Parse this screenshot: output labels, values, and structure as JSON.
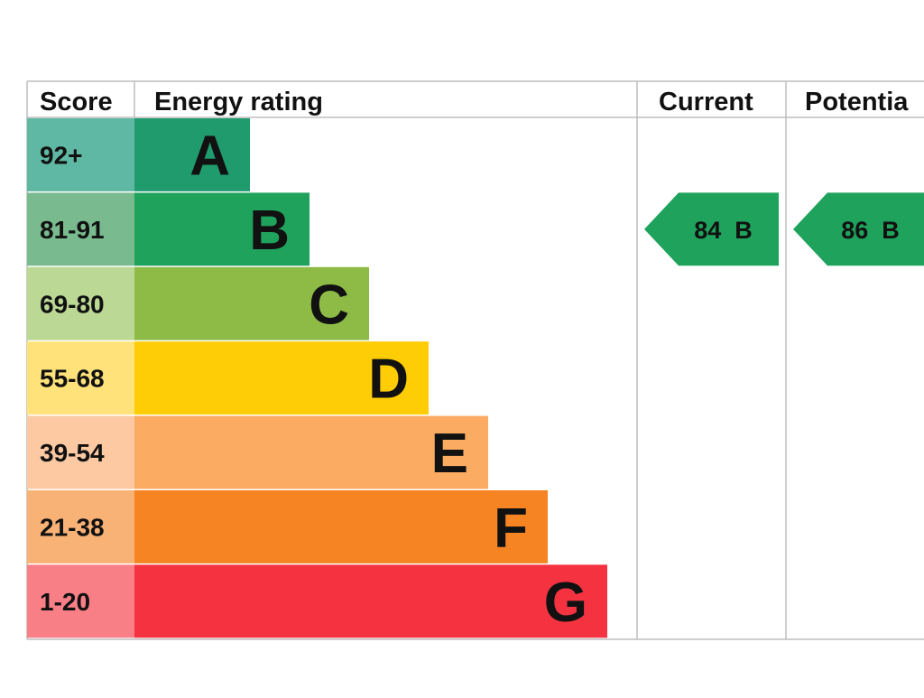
{
  "chart_data": {
    "type": "table",
    "headers": {
      "score": "Score",
      "rating": "Energy rating",
      "current": "Current",
      "potential": "Potentia"
    },
    "bands": [
      {
        "score": "92+",
        "letter": "A",
        "color": "#1f9b6e",
        "score_bg": "#5fb8a3"
      },
      {
        "score": "81-91",
        "letter": "B",
        "color": "#1fa25c",
        "score_bg": "#79bb8f"
      },
      {
        "score": "69-80",
        "letter": "C",
        "color": "#8dbb46",
        "score_bg": "#bcd895"
      },
      {
        "score": "55-68",
        "letter": "D",
        "color": "#ffcd05",
        "score_bg": "#ffe27a"
      },
      {
        "score": "39-54",
        "letter": "E",
        "color": "#fbab62",
        "score_bg": "#fcc9a2"
      },
      {
        "score": "21-38",
        "letter": "F",
        "color": "#f68423",
        "score_bg": "#f9b276"
      },
      {
        "score": "1-20",
        "letter": "G",
        "color": "#f53340",
        "score_bg": "#f97f86"
      }
    ],
    "current": {
      "value": 84,
      "band": "B",
      "label": "84  B",
      "color": "#1fa25c"
    },
    "potential": {
      "value": 86,
      "band": "B",
      "label": "86  B",
      "color": "#1fa25c"
    }
  }
}
